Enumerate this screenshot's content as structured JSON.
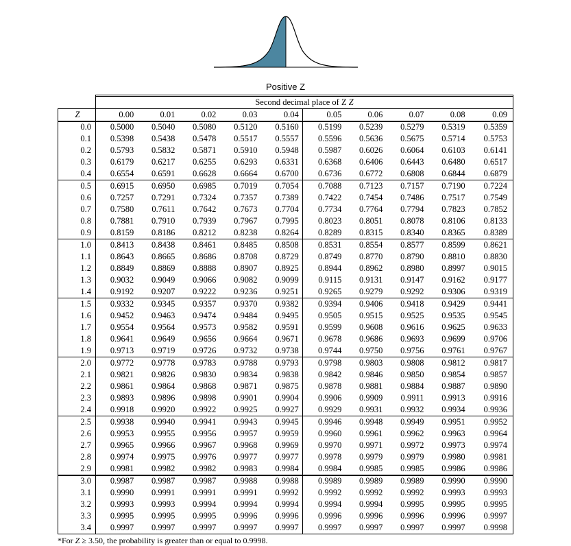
{
  "figure": {
    "caption": "Positive Z",
    "fill_color": "#4c86a0",
    "stroke_color": "#000000",
    "background_color": "#ffffff"
  },
  "table": {
    "super_header": "Second decimal place of Z",
    "super_header_ital": "Z",
    "row_header_label": "Z",
    "col_headers": [
      "0.00",
      "0.01",
      "0.02",
      "0.03",
      "0.04",
      "0.05",
      "0.06",
      "0.07",
      "0.08",
      "0.09"
    ],
    "footnote_prefix": "*For ",
    "footnote_ital": "Z",
    "footnote_suffix": " ≥ 3.50, the probability is greater than or equal to 0.9998.",
    "sections": [
      {
        "rows": [
          {
            "z": "0.0",
            "v": [
              "0.5000",
              "0.5040",
              "0.5080",
              "0.5120",
              "0.5160",
              "0.5199",
              "0.5239",
              "0.5279",
              "0.5319",
              "0.5359"
            ]
          },
          {
            "z": "0.1",
            "v": [
              "0.5398",
              "0.5438",
              "0.5478",
              "0.5517",
              "0.5557",
              "0.5596",
              "0.5636",
              "0.5675",
              "0.5714",
              "0.5753"
            ]
          },
          {
            "z": "0.2",
            "v": [
              "0.5793",
              "0.5832",
              "0.5871",
              "0.5910",
              "0.5948",
              "0.5987",
              "0.6026",
              "0.6064",
              "0.6103",
              "0.6141"
            ]
          },
          {
            "z": "0.3",
            "v": [
              "0.6179",
              "0.6217",
              "0.6255",
              "0.6293",
              "0.6331",
              "0.6368",
              "0.6406",
              "0.6443",
              "0.6480",
              "0.6517"
            ]
          },
          {
            "z": "0.4",
            "v": [
              "0.6554",
              "0.6591",
              "0.6628",
              "0.6664",
              "0.6700",
              "0.6736",
              "0.6772",
              "0.6808",
              "0.6844",
              "0.6879"
            ]
          }
        ]
      },
      {
        "rows": [
          {
            "z": "0.5",
            "v": [
              "0.6915",
              "0.6950",
              "0.6985",
              "0.7019",
              "0.7054",
              "0.7088",
              "0.7123",
              "0.7157",
              "0.7190",
              "0.7224"
            ]
          },
          {
            "z": "0.6",
            "v": [
              "0.7257",
              "0.7291",
              "0.7324",
              "0.7357",
              "0.7389",
              "0.7422",
              "0.7454",
              "0.7486",
              "0.7517",
              "0.7549"
            ]
          },
          {
            "z": "0.7",
            "v": [
              "0.7580",
              "0.7611",
              "0.7642",
              "0.7673",
              "0.7704",
              "0.7734",
              "0.7764",
              "0.7794",
              "0.7823",
              "0.7852"
            ]
          },
          {
            "z": "0.8",
            "v": [
              "0.7881",
              "0.7910",
              "0.7939",
              "0.7967",
              "0.7995",
              "0.8023",
              "0.8051",
              "0.8078",
              "0.8106",
              "0.8133"
            ]
          },
          {
            "z": "0.9",
            "v": [
              "0.8159",
              "0.8186",
              "0.8212",
              "0.8238",
              "0.8264",
              "0.8289",
              "0.8315",
              "0.8340",
              "0.8365",
              "0.8389"
            ]
          }
        ]
      },
      {
        "rows": [
          {
            "z": "1.0",
            "v": [
              "0.8413",
              "0.8438",
              "0.8461",
              "0.8485",
              "0.8508",
              "0.8531",
              "0.8554",
              "0.8577",
              "0.8599",
              "0.8621"
            ]
          },
          {
            "z": "1.1",
            "v": [
              "0.8643",
              "0.8665",
              "0.8686",
              "0.8708",
              "0.8729",
              "0.8749",
              "0.8770",
              "0.8790",
              "0.8810",
              "0.8830"
            ]
          },
          {
            "z": "1.2",
            "v": [
              "0.8849",
              "0.8869",
              "0.8888",
              "0.8907",
              "0.8925",
              "0.8944",
              "0.8962",
              "0.8980",
              "0.8997",
              "0.9015"
            ]
          },
          {
            "z": "1.3",
            "v": [
              "0.9032",
              "0.9049",
              "0.9066",
              "0.9082",
              "0.9099",
              "0.9115",
              "0.9131",
              "0.9147",
              "0.9162",
              "0.9177"
            ]
          },
          {
            "z": "1.4",
            "v": [
              "0.9192",
              "0.9207",
              "0.9222",
              "0.9236",
              "0.9251",
              "0.9265",
              "0.9279",
              "0.9292",
              "0.9306",
              "0.9319"
            ]
          }
        ]
      },
      {
        "rows": [
          {
            "z": "1.5",
            "v": [
              "0.9332",
              "0.9345",
              "0.9357",
              "0.9370",
              "0.9382",
              "0.9394",
              "0.9406",
              "0.9418",
              "0.9429",
              "0.9441"
            ]
          },
          {
            "z": "1.6",
            "v": [
              "0.9452",
              "0.9463",
              "0.9474",
              "0.9484",
              "0.9495",
              "0.9505",
              "0.9515",
              "0.9525",
              "0.9535",
              "0.9545"
            ]
          },
          {
            "z": "1.7",
            "v": [
              "0.9554",
              "0.9564",
              "0.9573",
              "0.9582",
              "0.9591",
              "0.9599",
              "0.9608",
              "0.9616",
              "0.9625",
              "0.9633"
            ]
          },
          {
            "z": "1.8",
            "v": [
              "0.9641",
              "0.9649",
              "0.9656",
              "0.9664",
              "0.9671",
              "0.9678",
              "0.9686",
              "0.9693",
              "0.9699",
              "0.9706"
            ]
          },
          {
            "z": "1.9",
            "v": [
              "0.9713",
              "0.9719",
              "0.9726",
              "0.9732",
              "0.9738",
              "0.9744",
              "0.9750",
              "0.9756",
              "0.9761",
              "0.9767"
            ]
          }
        ]
      },
      {
        "rows": [
          {
            "z": "2.0",
            "v": [
              "0.9772",
              "0.9778",
              "0.9783",
              "0.9788",
              "0.9793",
              "0.9798",
              "0.9803",
              "0.9808",
              "0.9812",
              "0.9817"
            ]
          },
          {
            "z": "2.1",
            "v": [
              "0.9821",
              "0.9826",
              "0.9830",
              "0.9834",
              "0.9838",
              "0.9842",
              "0.9846",
              "0.9850",
              "0.9854",
              "0.9857"
            ]
          },
          {
            "z": "2.2",
            "v": [
              "0.9861",
              "0.9864",
              "0.9868",
              "0.9871",
              "0.9875",
              "0.9878",
              "0.9881",
              "0.9884",
              "0.9887",
              "0.9890"
            ]
          },
          {
            "z": "2.3",
            "v": [
              "0.9893",
              "0.9896",
              "0.9898",
              "0.9901",
              "0.9904",
              "0.9906",
              "0.9909",
              "0.9911",
              "0.9913",
              "0.9916"
            ]
          },
          {
            "z": "2.4",
            "v": [
              "0.9918",
              "0.9920",
              "0.9922",
              "0.9925",
              "0.9927",
              "0.9929",
              "0.9931",
              "0.9932",
              "0.9934",
              "0.9936"
            ]
          }
        ]
      },
      {
        "rows": [
          {
            "z": "2.5",
            "v": [
              "0.9938",
              "0.9940",
              "0.9941",
              "0.9943",
              "0.9945",
              "0.9946",
              "0.9948",
              "0.9949",
              "0.9951",
              "0.9952"
            ]
          },
          {
            "z": "2.6",
            "v": [
              "0.9953",
              "0.9955",
              "0.9956",
              "0.9957",
              "0.9959",
              "0.9960",
              "0.9961",
              "0.9962",
              "0.9963",
              "0.9964"
            ]
          },
          {
            "z": "2.7",
            "v": [
              "0.9965",
              "0.9966",
              "0.9967",
              "0.9968",
              "0.9969",
              "0.9970",
              "0.9971",
              "0.9972",
              "0.9973",
              "0.9974"
            ]
          },
          {
            "z": "2.8",
            "v": [
              "0.9974",
              "0.9975",
              "0.9976",
              "0.9977",
              "0.9977",
              "0.9978",
              "0.9979",
              "0.9979",
              "0.9980",
              "0.9981"
            ]
          },
          {
            "z": "2.9",
            "v": [
              "0.9981",
              "0.9982",
              "0.9982",
              "0.9983",
              "0.9984",
              "0.9984",
              "0.9985",
              "0.9985",
              "0.9986",
              "0.9986"
            ]
          }
        ]
      },
      {
        "rows": [
          {
            "z": "3.0",
            "v": [
              "0.9987",
              "0.9987",
              "0.9987",
              "0.9988",
              "0.9988",
              "0.9989",
              "0.9989",
              "0.9989",
              "0.9990",
              "0.9990"
            ]
          },
          {
            "z": "3.1",
            "v": [
              "0.9990",
              "0.9991",
              "0.9991",
              "0.9991",
              "0.9992",
              "0.9992",
              "0.9992",
              "0.9992",
              "0.9993",
              "0.9993"
            ]
          },
          {
            "z": "3.2",
            "v": [
              "0.9993",
              "0.9993",
              "0.9994",
              "0.9994",
              "0.9994",
              "0.9994",
              "0.9994",
              "0.9995",
              "0.9995",
              "0.9995"
            ]
          },
          {
            "z": "3.3",
            "v": [
              "0.9995",
              "0.9995",
              "0.9995",
              "0.9996",
              "0.9996",
              "0.9996",
              "0.9996",
              "0.9996",
              "0.9996",
              "0.9997"
            ]
          },
          {
            "z": "3.4",
            "v": [
              "0.9997",
              "0.9997",
              "0.9997",
              "0.9997",
              "0.9997",
              "0.9997",
              "0.9997",
              "0.9997",
              "0.9997",
              "0.9998"
            ]
          }
        ]
      }
    ]
  }
}
